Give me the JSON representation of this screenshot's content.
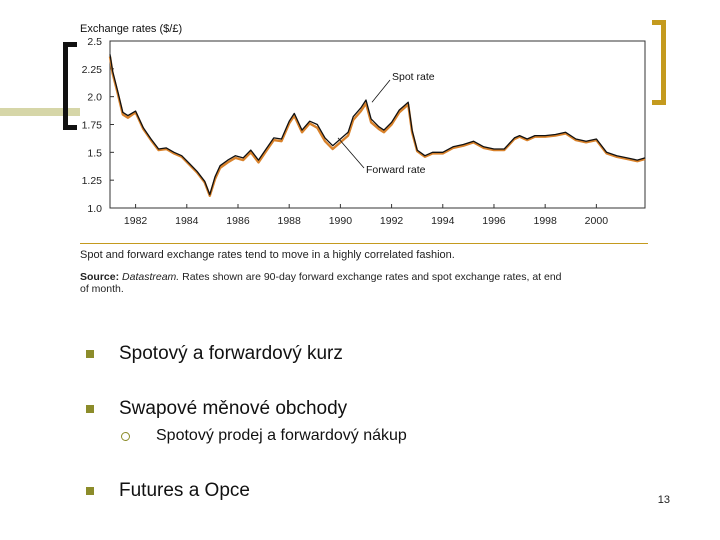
{
  "colors": {
    "accent_olive": "#8c8c2a",
    "accent_gold": "#c49a1e",
    "spot_line": "#111111",
    "forward_line": "#d9822b",
    "light_olive": "#d6d6a8"
  },
  "chart_data": {
    "type": "line",
    "title": "Exchange rates ($/£)",
    "xlabel": "",
    "ylabel": "",
    "ylim": [
      1.0,
      2.5
    ],
    "xlim": [
      1981,
      2001.9
    ],
    "y_ticks": [
      "2.5",
      "2.25",
      "2.0",
      "1.75",
      "1.5",
      "1.25",
      "1.0"
    ],
    "x_ticks": [
      "1982",
      "1984",
      "1986",
      "1988",
      "1990",
      "1992",
      "1994",
      "1996",
      "1998",
      "2000"
    ],
    "annotations": [
      {
        "text": "Spot rate"
      },
      {
        "text": "Forward rate"
      }
    ],
    "series": [
      {
        "name": "Spot rate",
        "color": "#111111",
        "x": [
          1981.0,
          1981.1,
          1981.3,
          1981.5,
          1981.7,
          1982.0,
          1982.3,
          1982.6,
          1982.9,
          1983.2,
          1983.5,
          1983.8,
          1984.1,
          1984.4,
          1984.7,
          1984.9,
          1985.1,
          1985.3,
          1985.6,
          1985.9,
          1986.2,
          1986.5,
          1986.8,
          1987.1,
          1987.4,
          1987.7,
          1988.0,
          1988.2,
          1988.5,
          1988.8,
          1989.1,
          1989.4,
          1989.7,
          1990.0,
          1990.3,
          1990.5,
          1990.8,
          1991.0,
          1991.2,
          1991.5,
          1991.7,
          1992.0,
          1992.3,
          1992.5,
          1992.65,
          1992.8,
          1993.0,
          1993.3,
          1993.6,
          1994.0,
          1994.4,
          1994.8,
          1995.2,
          1995.6,
          1996.0,
          1996.4,
          1996.8,
          1997.0,
          1997.3,
          1997.6,
          1998.0,
          1998.4,
          1998.8,
          1999.2,
          1999.6,
          2000.0,
          2000.4,
          2000.8,
          2001.2,
          2001.6,
          2001.9
        ],
        "values": [
          2.38,
          2.23,
          2.05,
          1.86,
          1.83,
          1.87,
          1.72,
          1.62,
          1.53,
          1.54,
          1.5,
          1.47,
          1.4,
          1.33,
          1.24,
          1.12,
          1.28,
          1.38,
          1.43,
          1.47,
          1.45,
          1.52,
          1.43,
          1.53,
          1.63,
          1.62,
          1.78,
          1.85,
          1.7,
          1.78,
          1.75,
          1.63,
          1.56,
          1.62,
          1.68,
          1.82,
          1.9,
          1.97,
          1.8,
          1.73,
          1.7,
          1.77,
          1.88,
          1.92,
          1.95,
          1.7,
          1.52,
          1.47,
          1.5,
          1.5,
          1.55,
          1.57,
          1.6,
          1.55,
          1.53,
          1.53,
          1.63,
          1.65,
          1.62,
          1.65,
          1.65,
          1.66,
          1.68,
          1.62,
          1.6,
          1.62,
          1.5,
          1.47,
          1.45,
          1.43,
          1.45
        ]
      },
      {
        "name": "Forward rate",
        "color": "#d9822b",
        "x": [
          1981.0,
          1981.1,
          1981.3,
          1981.5,
          1981.7,
          1982.0,
          1982.3,
          1982.6,
          1982.9,
          1983.2,
          1983.5,
          1983.8,
          1984.1,
          1984.4,
          1984.7,
          1984.9,
          1985.1,
          1985.3,
          1985.6,
          1985.9,
          1986.2,
          1986.5,
          1986.8,
          1987.1,
          1987.4,
          1987.7,
          1988.0,
          1988.2,
          1988.5,
          1988.8,
          1989.1,
          1989.4,
          1989.7,
          1990.0,
          1990.3,
          1990.5,
          1990.8,
          1991.0,
          1991.2,
          1991.5,
          1991.7,
          1992.0,
          1992.3,
          1992.5,
          1992.65,
          1992.8,
          1993.0,
          1993.3,
          1993.6,
          1994.0,
          1994.4,
          1994.8,
          1995.2,
          1995.6,
          1996.0,
          1996.4,
          1996.8,
          1997.0,
          1997.3,
          1997.6,
          1998.0,
          1998.4,
          1998.8,
          1999.2,
          1999.6,
          2000.0,
          2000.4,
          2000.8,
          2001.2,
          2001.6,
          2001.9
        ],
        "values": [
          2.36,
          2.21,
          2.03,
          1.84,
          1.81,
          1.86,
          1.71,
          1.61,
          1.52,
          1.53,
          1.49,
          1.46,
          1.39,
          1.32,
          1.23,
          1.11,
          1.26,
          1.36,
          1.41,
          1.45,
          1.43,
          1.5,
          1.41,
          1.51,
          1.61,
          1.6,
          1.76,
          1.83,
          1.68,
          1.76,
          1.72,
          1.6,
          1.53,
          1.59,
          1.65,
          1.79,
          1.87,
          1.94,
          1.77,
          1.71,
          1.68,
          1.75,
          1.86,
          1.9,
          1.93,
          1.68,
          1.51,
          1.46,
          1.49,
          1.49,
          1.54,
          1.56,
          1.59,
          1.54,
          1.52,
          1.52,
          1.62,
          1.64,
          1.61,
          1.64,
          1.64,
          1.65,
          1.67,
          1.61,
          1.59,
          1.61,
          1.49,
          1.46,
          1.44,
          1.42,
          1.44
        ]
      }
    ]
  },
  "caption": {
    "text": "Spot and forward exchange rates tend to move in a highly correlated fashion.",
    "source_label": "Source:",
    "source_italic": "Datastream.",
    "source_rest": "Rates shown are 90-day forward exchange rates and spot exchange rates, at end",
    "source_rest2": "of month."
  },
  "bullets": [
    {
      "text": "Spotový a forwardový kurz"
    },
    {
      "text": "Swapové měnové obchody"
    },
    {
      "text": "Futures a Opce"
    }
  ],
  "sub_bullets": [
    {
      "text": "Spotový prodej a forwardový nákup"
    }
  ],
  "page_number": "13"
}
